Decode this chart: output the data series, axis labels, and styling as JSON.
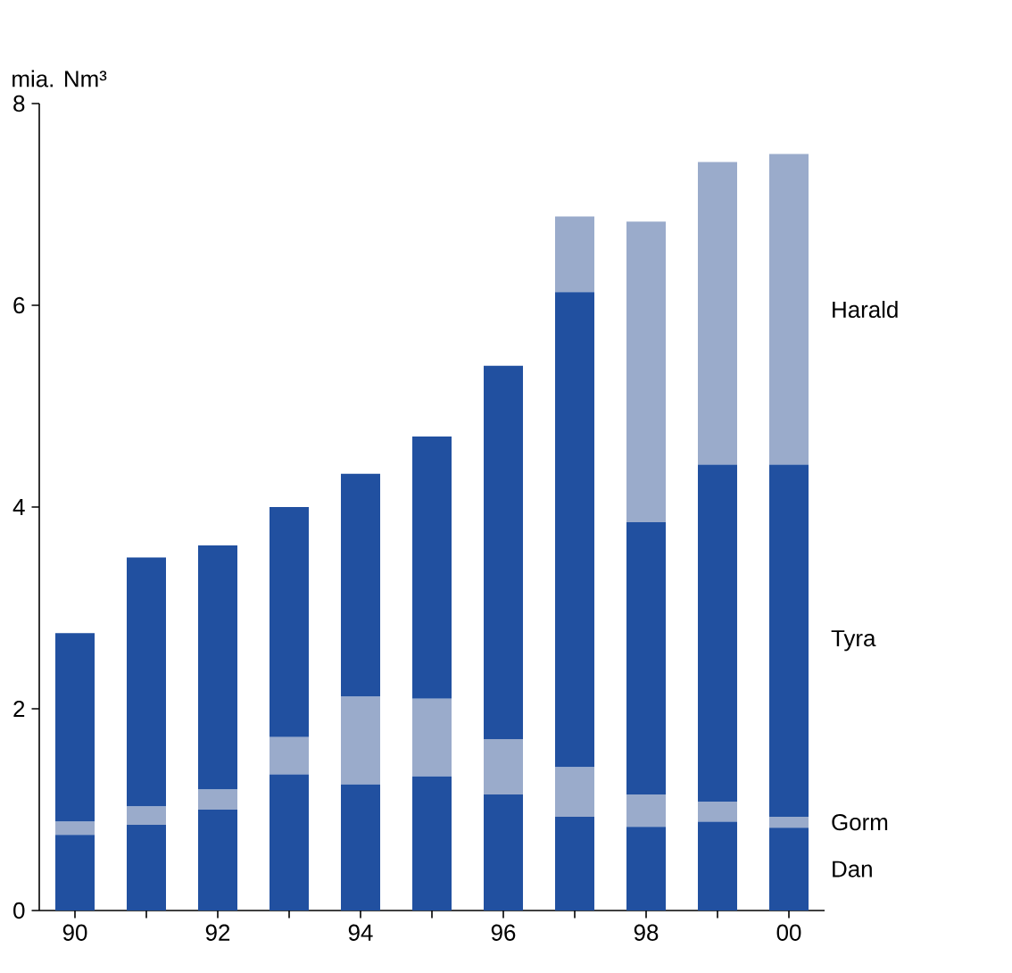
{
  "chart_data": {
    "type": "bar",
    "stacked": true,
    "ylabel": "mia. Nm³",
    "categories": [
      "90",
      null,
      "92",
      null,
      "94",
      null,
      "96",
      null,
      "98",
      null,
      "00"
    ],
    "series": [
      {
        "name": "Dan",
        "color": "#2150a0",
        "values": [
          0.75,
          0.85,
          1.0,
          1.35,
          1.25,
          1.33,
          1.15,
          0.93,
          0.83,
          0.88,
          0.82
        ]
      },
      {
        "name": "Gorm",
        "color": "#9aabcb",
        "values": [
          0.13,
          0.18,
          0.2,
          0.37,
          0.87,
          0.77,
          0.55,
          0.49,
          0.32,
          0.2,
          0.11
        ]
      },
      {
        "name": "Tyra",
        "color": "#2150a0",
        "values": [
          1.87,
          2.47,
          2.42,
          2.28,
          2.21,
          2.6,
          3.7,
          4.71,
          2.7,
          3.34,
          3.49
        ]
      },
      {
        "name": "Harald",
        "color": "#9aabcb",
        "values": [
          0,
          0,
          0,
          0,
          0,
          0,
          0,
          0.75,
          2.98,
          3.0,
          3.08
        ]
      }
    ],
    "ylim": [
      0,
      8
    ],
    "yticks": [
      0,
      2,
      4,
      6,
      8
    ],
    "grid": false,
    "legend": false
  }
}
